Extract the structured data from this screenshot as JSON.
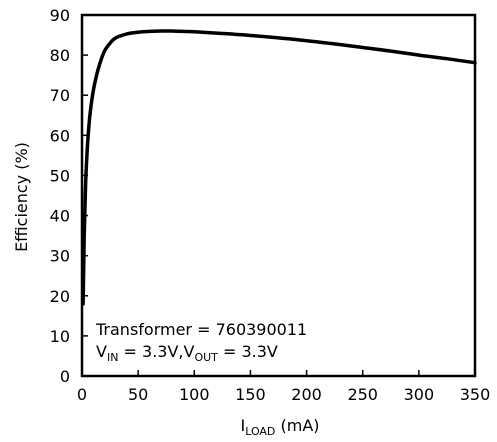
{
  "chart_data": {
    "type": "line",
    "title": "",
    "xlabel": {
      "main": "I",
      "sub": "LOAD",
      "unit": " (mA)"
    },
    "ylabel": "Efficiency (%)",
    "xlim": [
      0,
      350
    ],
    "ylim": [
      0,
      90
    ],
    "xticks": [
      "0",
      "50",
      "100",
      "150",
      "200",
      "250",
      "300",
      "350"
    ],
    "yticks": [
      "0",
      "10",
      "20",
      "30",
      "40",
      "50",
      "60",
      "70",
      "80",
      "90"
    ],
    "grid": false,
    "series": [
      {
        "x": [
          1,
          2,
          3,
          4,
          5,
          7,
          10,
          13,
          16,
          20,
          25,
          30,
          40,
          50,
          60,
          70,
          80,
          90,
          100,
          125,
          150,
          175,
          200,
          225,
          250,
          275,
          300,
          325,
          350
        ],
        "y": [
          18,
          35,
          46,
          53,
          58,
          65,
          71,
          75,
          78,
          81,
          83,
          84.3,
          85.3,
          85.7,
          85.9,
          86,
          86,
          85.9,
          85.8,
          85.4,
          84.9,
          84.3,
          83.6,
          82.8,
          81.9,
          81,
          80,
          79.1,
          78.1
        ]
      }
    ],
    "annotation": {
      "line1": "Transformer = 760390011",
      "line2_v_in_main": "V",
      "line2_v_in_sub": "IN",
      "line2_v_in_value": " = 3.3V,",
      "line2_v_out_main": "V",
      "line2_v_out_sub": "OUT",
      "line2_v_out_value": " = 3.3V"
    },
    "colors": {
      "line": "#000000",
      "axes": "#000000",
      "background": "#ffffff"
    }
  }
}
